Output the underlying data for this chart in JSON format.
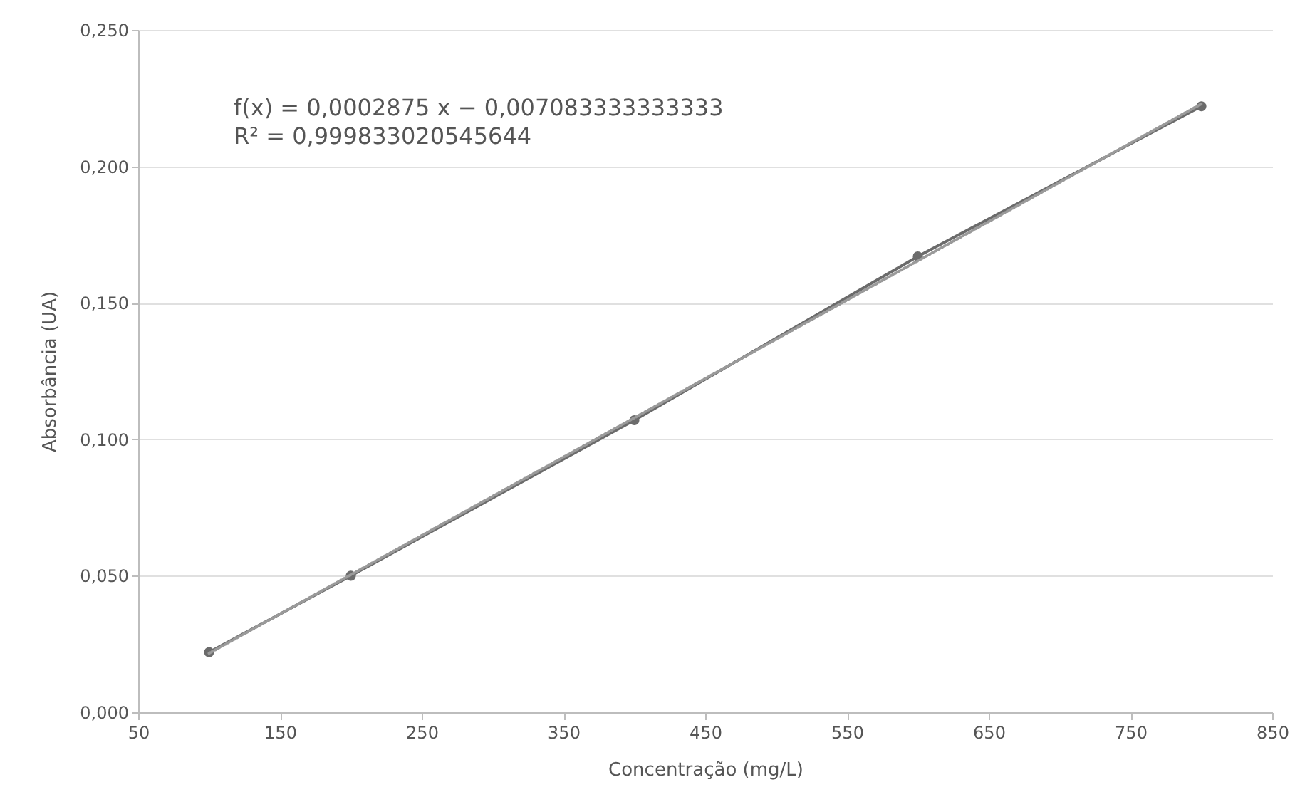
{
  "chart_data": {
    "type": "line",
    "xlabel": "Concentração (mg/L)",
    "ylabel": "Absorbância (UA)",
    "annotations": [
      "f(x) = 0,0002875 x − 0,007083333333333",
      "R² = 0,999833020545644"
    ],
    "x": [
      100,
      200,
      400,
      600,
      800
    ],
    "series": [
      {
        "color": "#6b6b6b",
        "values": [
          0.022,
          0.05,
          0.107,
          0.167,
          0.222
        ],
        "marker": "circle",
        "line_style": "solid"
      },
      {
        "type": "line",
        "color": "#9a9a9a",
        "x": [
          100,
          800
        ],
        "values": [
          0.0216,
          0.2229
        ],
        "marker": "none",
        "line_style": "dotted"
      }
    ],
    "xlim": [
      50,
      850
    ],
    "xticks": [
      50,
      150,
      250,
      350,
      450,
      550,
      650,
      750,
      850
    ],
    "ylim": [
      0,
      0.25
    ],
    "yticks": [
      {
        "value": 0,
        "label": "0,000"
      },
      {
        "value": 0.05,
        "label": "0,050"
      },
      {
        "value": 0.1,
        "label": "0,100"
      },
      {
        "value": 0.15,
        "label": "0,150"
      },
      {
        "value": 0.2,
        "label": "0,200"
      },
      {
        "value": 0.25,
        "label": "0,250"
      }
    ],
    "grid": "y"
  }
}
